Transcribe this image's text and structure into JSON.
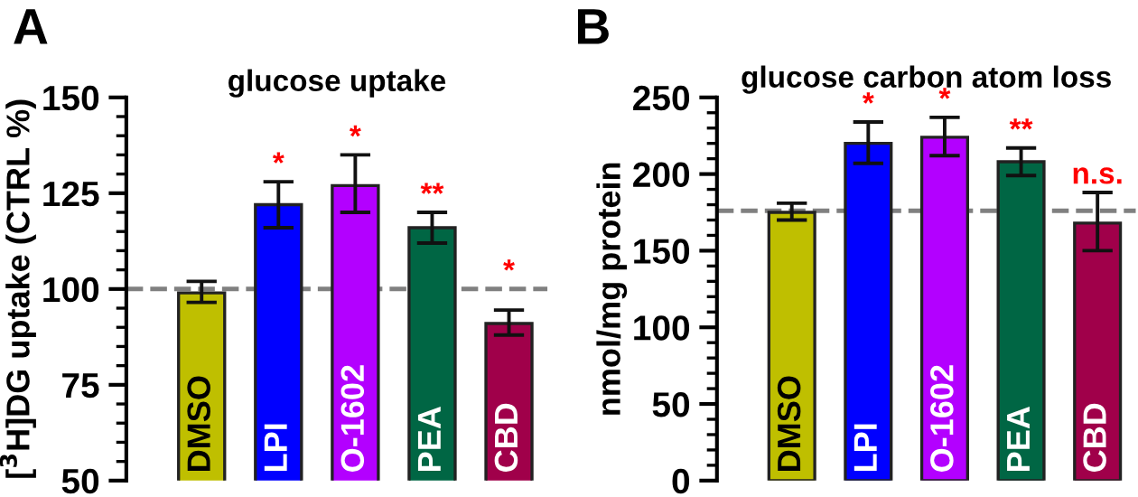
{
  "chart_data": [
    {
      "type": "bar",
      "title": "glucose uptake",
      "ylabel": "[$^{3}$H]DG uptake (CTRL %)",
      "categories": [
        "DMSO",
        "LPI",
        "O-1602",
        "PEA",
        "CBD"
      ],
      "values": [
        99,
        122,
        127,
        116,
        91
      ],
      "errors": [
        [
          96.5,
          102
        ],
        [
          116,
          128
        ],
        [
          120,
          135
        ],
        [
          112,
          120
        ],
        [
          88,
          94.5
        ]
      ],
      "colors": [
        "#bfbf00",
        "#0000ff",
        "#b300ff",
        "#006644",
        "#a0004a"
      ],
      "ylim": [
        50,
        150
      ],
      "yticks": [
        50,
        75,
        100,
        125,
        150
      ],
      "ref_lines": [
        {
          "axis": "y",
          "value": 100,
          "line_style": "dashed",
          "color": "#808080"
        }
      ],
      "annotations": [
        "A",
        {
          "text": "*",
          "x": "LPI",
          "y": 128
        },
        {
          "text": "*",
          "x": "O-1602",
          "y": 135
        },
        {
          "text": "**",
          "x": "PEA",
          "y": 120
        },
        {
          "text": "*",
          "x": "CBD",
          "y": 100
        }
      ]
    },
    {
      "type": "bar",
      "title": "glucose carbon atom loss",
      "ylabel": "nmol/mg protein",
      "categories": [
        "DMSO",
        "LPI",
        "O-1602",
        "PEA",
        "CBD"
      ],
      "values": [
        175,
        220,
        224,
        208,
        168
      ],
      "errors": [
        [
          170,
          181
        ],
        [
          207,
          234
        ],
        [
          212,
          237
        ],
        [
          199,
          217
        ],
        [
          150,
          188
        ]
      ],
      "colors": [
        "#bfbf00",
        "#0000ff",
        "#b300ff",
        "#006644",
        "#a0004a"
      ],
      "ylim": [
        0,
        250
      ],
      "yticks": [
        0,
        50,
        100,
        150,
        200,
        250
      ],
      "ref_lines": [
        {
          "axis": "y",
          "value": 176,
          "line_style": "dashed",
          "color": "#808080"
        }
      ],
      "annotations": [
        "B",
        {
          "text": "*",
          "x": "LPI",
          "y": 234
        },
        {
          "text": "*",
          "x": "O-1602",
          "y": 237
        },
        {
          "text": "**",
          "x": "PEA",
          "y": 217
        },
        {
          "text": "n.s.",
          "x": "CBD",
          "y": 188
        }
      ]
    }
  ]
}
